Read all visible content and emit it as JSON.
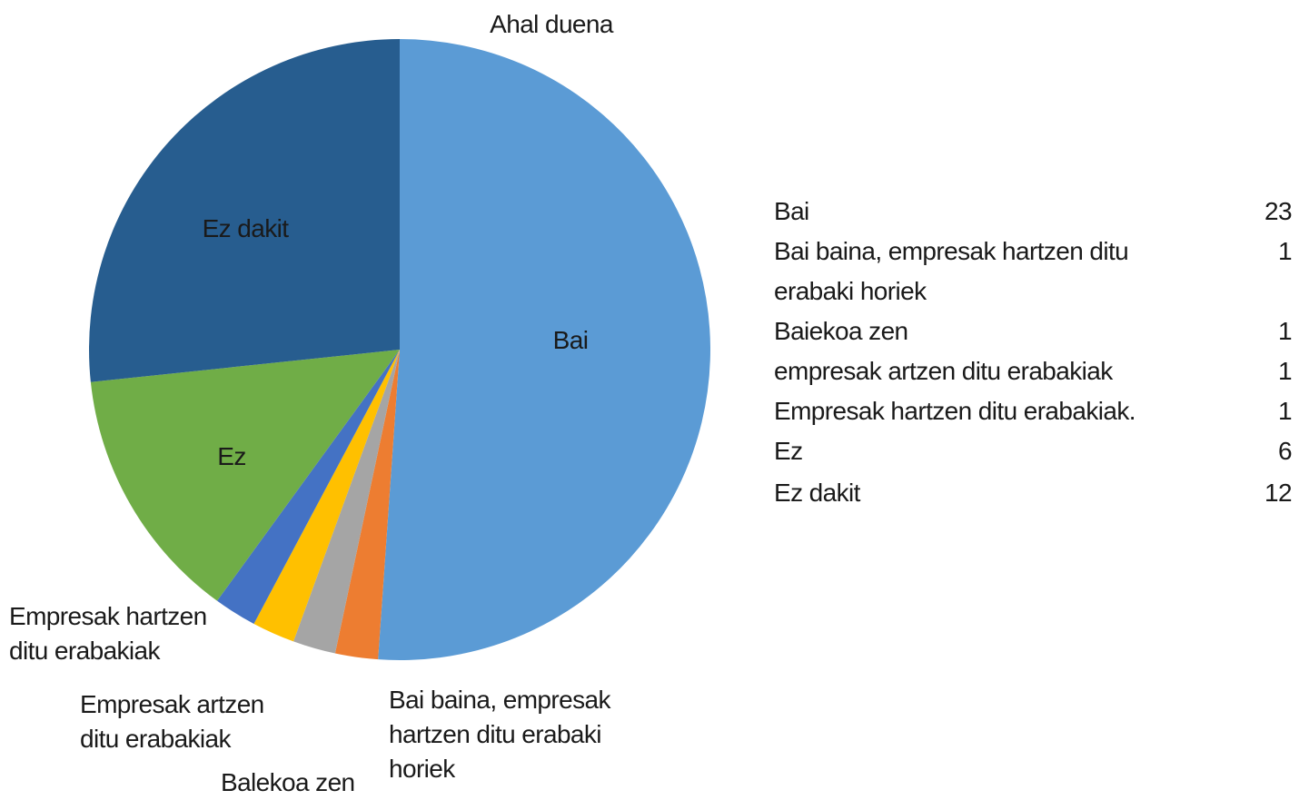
{
  "chart_data": {
    "type": "pie",
    "title": "Ahal duena",
    "categories": [
      "Bai",
      "Bai baina, empresak hartzen ditu erabaki horiek",
      "Balekoa zen",
      "Empresak artzen ditu erabakiak",
      "Empresak hartzen ditu erabakiak",
      "Ez",
      "Ez dakit"
    ],
    "values": [
      23,
      1,
      1,
      1,
      1,
      6,
      12
    ],
    "colors": [
      "#5b9bd5",
      "#ed7d31",
      "#a5a5a5",
      "#ffc000",
      "#4472c4",
      "#70ad47",
      "#275d8f"
    ]
  },
  "table": {
    "labels": [
      "Bai",
      "Bai baina, empresak hartzen ditu erabaki horiek",
      "Baiekoa zen",
      "empresak artzen ditu erabakiak",
      "Empresak hartzen ditu erabakiak.",
      "Ez",
      "Ez dakit"
    ]
  }
}
